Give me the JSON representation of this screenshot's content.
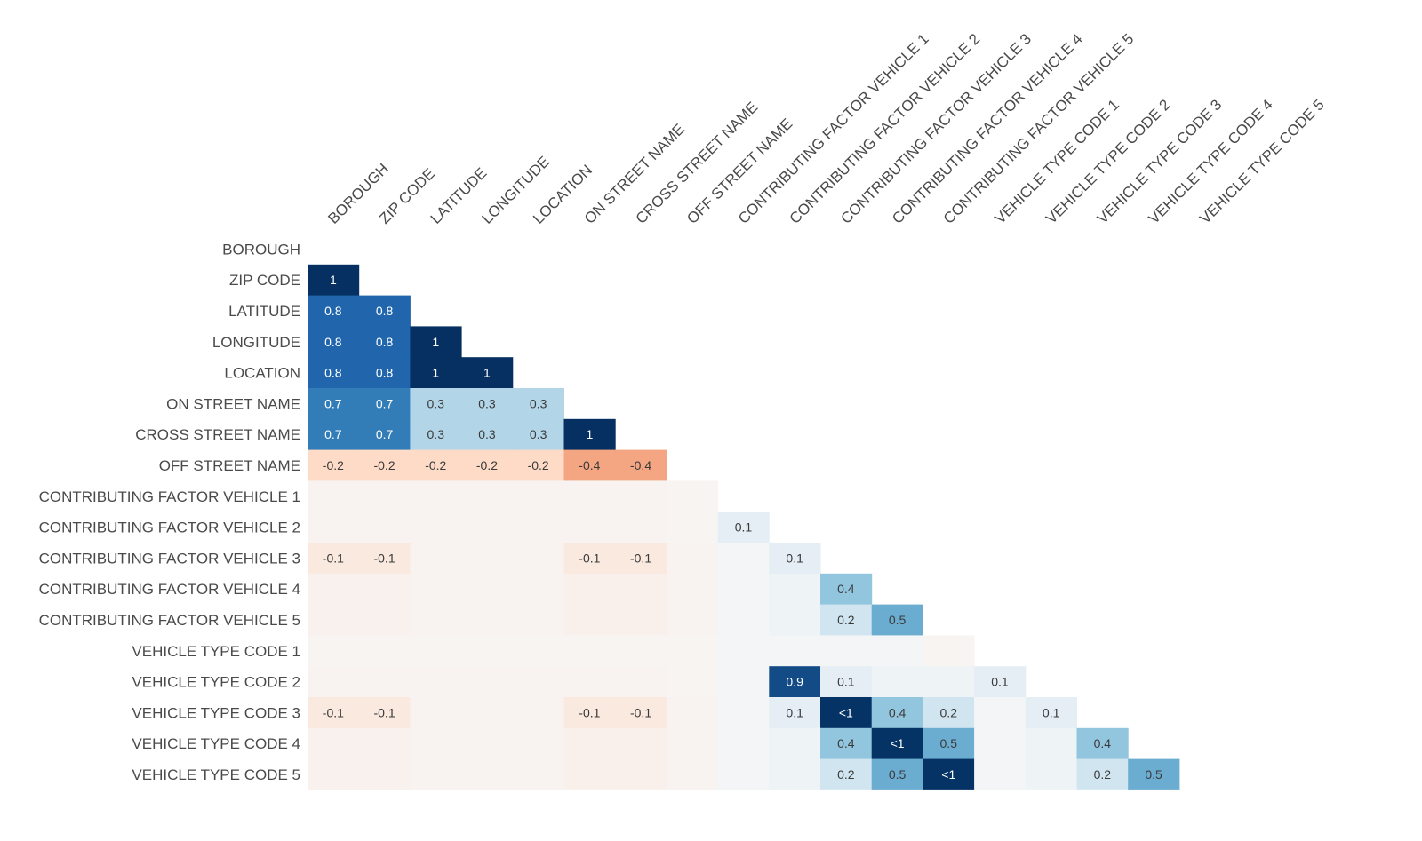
{
  "chart_data": {
    "type": "heatmap",
    "title": "",
    "description_kind": "nullity-correlation-lower-triangle",
    "variables": [
      "BOROUGH",
      "ZIP CODE",
      "LATITUDE",
      "LONGITUDE",
      "LOCATION",
      "ON STREET NAME",
      "CROSS STREET NAME",
      "OFF STREET NAME",
      "CONTRIBUTING FACTOR VEHICLE 1",
      "CONTRIBUTING FACTOR VEHICLE 2",
      "CONTRIBUTING FACTOR VEHICLE 3",
      "CONTRIBUTING FACTOR VEHICLE 4",
      "CONTRIBUTING FACTOR VEHICLE 5",
      "VEHICLE TYPE CODE 1",
      "VEHICLE TYPE CODE 2",
      "VEHICLE TYPE CODE 3",
      "VEHICLE TYPE CODE 4",
      "VEHICLE TYPE CODE 5"
    ],
    "value_range": [
      -1,
      1
    ],
    "matrix": [
      [],
      [
        1
      ],
      [
        0.8,
        0.8
      ],
      [
        0.8,
        0.8,
        1
      ],
      [
        0.8,
        0.8,
        1,
        1
      ],
      [
        0.7,
        0.7,
        0.3,
        0.3,
        0.3
      ],
      [
        0.7,
        0.7,
        0.3,
        0.3,
        0.3,
        1
      ],
      [
        -0.2,
        -0.2,
        -0.2,
        -0.2,
        -0.2,
        -0.4,
        -0.4
      ],
      [
        -0.03,
        -0.03,
        -0.03,
        -0.03,
        -0.03,
        -0.03,
        -0.03,
        -0.02
      ],
      [
        -0.03,
        -0.03,
        -0.03,
        -0.03,
        -0.03,
        -0.03,
        -0.03,
        -0.02,
        0.1
      ],
      [
        -0.1,
        -0.1,
        -0.03,
        -0.03,
        -0.03,
        -0.1,
        -0.1,
        -0.03,
        0.02,
        0.1
      ],
      [
        -0.04,
        -0.04,
        -0.03,
        -0.03,
        -0.03,
        -0.05,
        -0.05,
        -0.03,
        0.02,
        0.05,
        0.4
      ],
      [
        -0.04,
        -0.04,
        -0.03,
        -0.03,
        -0.03,
        -0.05,
        -0.05,
        -0.03,
        0.02,
        0.05,
        0.2,
        0.5
      ],
      [
        -0.02,
        -0.02,
        -0.02,
        -0.02,
        -0.02,
        -0.02,
        -0.02,
        -0.02,
        0.02,
        0.02,
        0.02,
        0.02,
        -0.02
      ],
      [
        -0.03,
        -0.03,
        -0.03,
        -0.03,
        -0.03,
        -0.03,
        -0.03,
        -0.02,
        0.02,
        0.9,
        0.1,
        0.05,
        0.05,
        0.1
      ],
      [
        -0.1,
        -0.1,
        -0.03,
        -0.03,
        -0.03,
        -0.1,
        -0.1,
        -0.03,
        0.02,
        0.1,
        0.99,
        0.4,
        0.2,
        0.02,
        0.1
      ],
      [
        -0.04,
        -0.04,
        -0.03,
        -0.03,
        -0.03,
        -0.05,
        -0.05,
        -0.03,
        0.02,
        0.05,
        0.4,
        0.99,
        0.5,
        0.02,
        0.05,
        0.4
      ],
      [
        -0.04,
        -0.04,
        -0.03,
        -0.03,
        -0.03,
        -0.05,
        -0.05,
        -0.03,
        0.02,
        0.05,
        0.2,
        0.5,
        0.99,
        0.02,
        0.05,
        0.2,
        0.5
      ]
    ],
    "cell_labels": [
      [],
      [
        "1"
      ],
      [
        "0.8",
        "0.8"
      ],
      [
        "0.8",
        "0.8",
        "1"
      ],
      [
        "0.8",
        "0.8",
        "1",
        "1"
      ],
      [
        "0.7",
        "0.7",
        "0.3",
        "0.3",
        "0.3"
      ],
      [
        "0.7",
        "0.7",
        "0.3",
        "0.3",
        "0.3",
        "1"
      ],
      [
        "-0.2",
        "-0.2",
        "-0.2",
        "-0.2",
        "-0.2",
        "-0.4",
        "-0.4"
      ],
      [
        "",
        "",
        "",
        "",
        "",
        "",
        "",
        ""
      ],
      [
        "",
        "",
        "",
        "",
        "",
        "",
        "",
        "",
        "0.1"
      ],
      [
        "-0.1",
        "-0.1",
        "",
        "",
        "",
        "-0.1",
        "-0.1",
        "",
        "",
        "0.1"
      ],
      [
        "",
        "",
        "",
        "",
        "",
        "",
        "",
        "",
        "",
        "",
        "0.4"
      ],
      [
        "",
        "",
        "",
        "",
        "",
        "",
        "",
        "",
        "",
        "",
        "0.2",
        "0.5"
      ],
      [
        "",
        "",
        "",
        "",
        "",
        "",
        "",
        "",
        "",
        "",
        "",
        "",
        ""
      ],
      [
        "",
        "",
        "",
        "",
        "",
        "",
        "",
        "",
        "",
        "0.9",
        "0.1",
        "",
        "",
        "0.1"
      ],
      [
        "-0.1",
        "-0.1",
        "",
        "",
        "",
        "-0.1",
        "-0.1",
        "",
        "",
        "0.1",
        "<1",
        "0.4",
        "0.2",
        "",
        "0.1"
      ],
      [
        "",
        "",
        "",
        "",
        "",
        "",
        "",
        "",
        "",
        "",
        "0.4",
        "<1",
        "0.5",
        "",
        "",
        "0.4"
      ],
      [
        "",
        "",
        "",
        "",
        "",
        "",
        "",
        "",
        "",
        "",
        "0.2",
        "0.5",
        "<1",
        "",
        "",
        "0.2",
        "0.5"
      ]
    ]
  }
}
